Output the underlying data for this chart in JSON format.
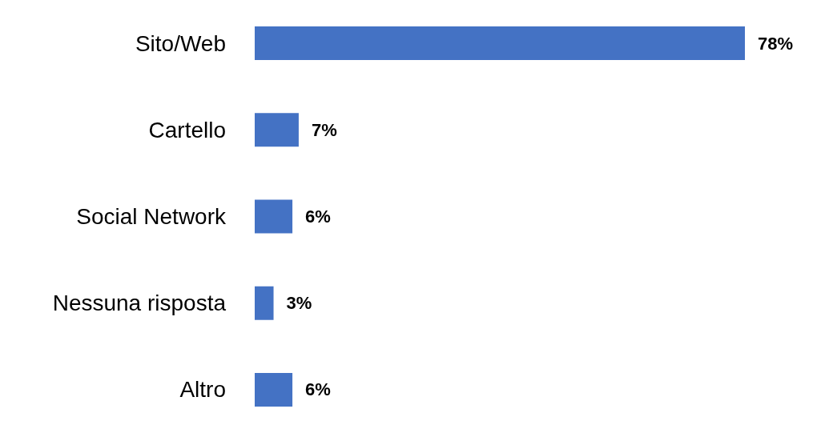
{
  "chart_data": {
    "type": "bar",
    "orientation": "horizontal",
    "categories": [
      "Sito/Web",
      "Cartello",
      "Social Network",
      "Nessuna risposta",
      "Altro"
    ],
    "values": [
      78,
      7,
      6,
      3,
      6
    ],
    "value_labels": [
      "78%",
      "7%",
      "6%",
      "3%",
      "6%"
    ],
    "color": "#4472c4"
  }
}
